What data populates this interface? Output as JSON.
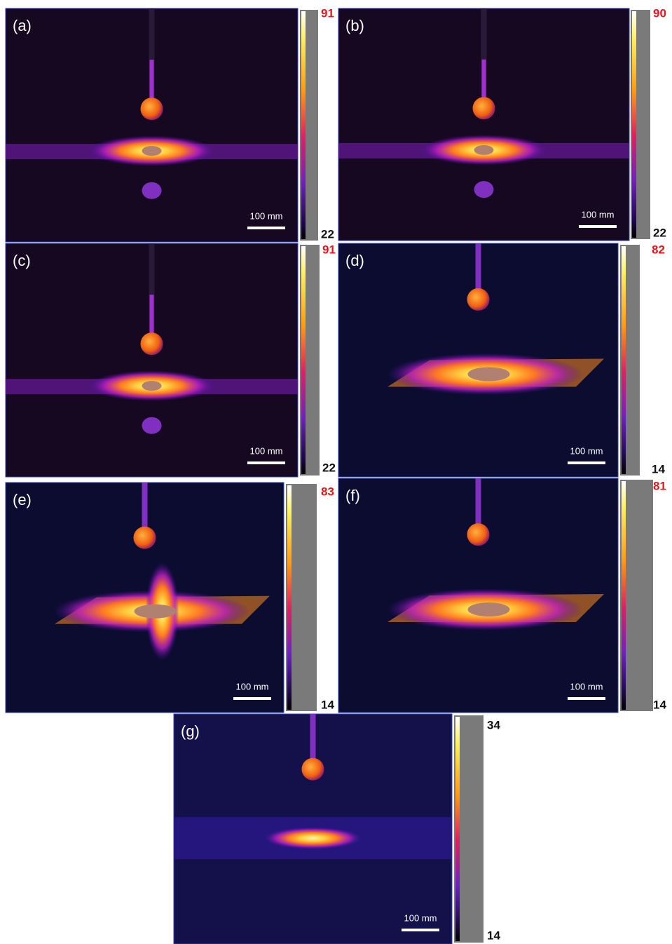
{
  "panels": [
    {
      "label": "(a)",
      "scale_bar": "100 mm",
      "max": 91,
      "min": 22
    },
    {
      "label": "(b)",
      "scale_bar": "100 mm",
      "max": 90,
      "min": 22
    },
    {
      "label": "(c)",
      "scale_bar": "100 mm",
      "max": 91,
      "min": 22
    },
    {
      "label": "(d)",
      "scale_bar": "100 mm",
      "max": 82,
      "min": 14
    },
    {
      "label": "(e)",
      "scale_bar": "100 mm",
      "max": 83,
      "min": 14
    },
    {
      "label": "(f)",
      "scale_bar": "100 mm",
      "max": 81,
      "min": 14
    },
    {
      "label": "(g)",
      "scale_bar": "100 mm",
      "max": 34,
      "min": 14
    }
  ]
}
